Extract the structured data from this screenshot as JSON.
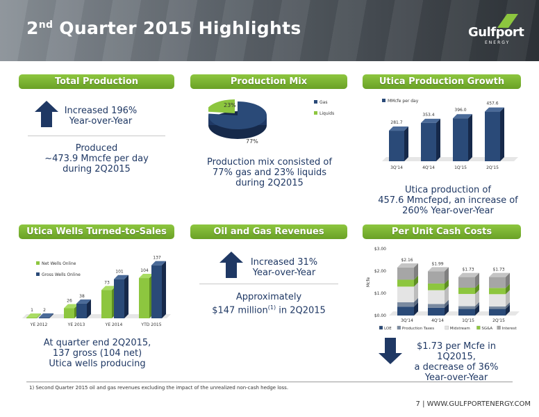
{
  "header": {
    "title_num": "2",
    "title_sup": "nd",
    "title_rest": " Quarter 2015 Highlights",
    "logo_word": "Gulfport",
    "logo_sub": "ENERGY"
  },
  "panels": {
    "total_production": {
      "label": "Total Production",
      "arrow_text_1": "Increased 196%",
      "arrow_text_2": "Year-over-Year",
      "body_1": "Produced",
      "body_2": "~473.9 Mmcfe per day",
      "body_3": "during 2Q2015"
    },
    "production_mix": {
      "label": "Production Mix",
      "body_1": "Production mix consisted of",
      "body_2": "77% gas and 23% liquids",
      "body_3": "during 2Q2015"
    },
    "utica_growth": {
      "label": "Utica Production Growth",
      "body_1": "Utica production of",
      "body_2": "457.6 Mmcfepd, an increase of",
      "body_3": "260% Year-over-Year"
    },
    "wells": {
      "label": "Utica Wells Turned-to-Sales",
      "body_1": "At quarter end 2Q2015,",
      "body_2": "137 gross (104 net)",
      "body_3": "Utica wells producing"
    },
    "revenues": {
      "label": "Oil and Gas Revenues",
      "arrow_text_1": "Increased 31%",
      "arrow_text_2": "Year-over-Year",
      "body_1": "Approximately",
      "body_2a": "$147 million",
      "body_2sup": "(1)",
      "body_2b": " in 2Q2015"
    },
    "unit_costs": {
      "label": "Per Unit Cash Costs",
      "body_1": "$1.73 per Mcfe in 1Q2015,",
      "body_2": "a decrease of 36%",
      "body_3": "Year-over-Year"
    }
  },
  "footnote": "1)    Second Quarter 2015 oil and gas revenues excluding the impact of the unrealized non-cash hedge loss.",
  "page": "7 | WWW.GULFPORTENERGY.COM",
  "colors": {
    "green": "#8dc63f",
    "navy": "#1f3864",
    "bar_blue": "#2a4a78"
  },
  "chart_data": [
    {
      "type": "pie",
      "title": "",
      "slices": [
        {
          "name": "Gas",
          "value": 77,
          "label": "77%"
        },
        {
          "name": "Liquids",
          "value": 23,
          "label": "23%"
        }
      ]
    },
    {
      "type": "bar",
      "title": "",
      "categories": [
        "3Q'14",
        "4Q'14",
        "1Q'15",
        "2Q'15"
      ],
      "series": [
        {
          "name": "MMcfe per day",
          "values": [
            281.7,
            353.4,
            396.0,
            457.6
          ],
          "labels": [
            "281.7",
            "353.4",
            "396.0",
            "457.6"
          ]
        }
      ]
    },
    {
      "type": "bar",
      "title": "",
      "categories": [
        "YE 2012",
        "YE 2013",
        "YE 2014",
        "YTD 2015"
      ],
      "series": [
        {
          "name": "Net Wells Online",
          "values": [
            1,
            26,
            73,
            104
          ]
        },
        {
          "name": "Gross Wells Online",
          "values": [
            2,
            38,
            101,
            137
          ]
        }
      ]
    },
    {
      "type": "bar",
      "title": "",
      "stacked": true,
      "ylabel": "Mcfe",
      "ylim": [
        0,
        3
      ],
      "yticks": [
        "$0.00",
        "$1.00",
        "$2.00",
        "$3.00"
      ],
      "categories": [
        "3Q'14",
        "4Q'14",
        "1Q'15",
        "2Q'15"
      ],
      "totals": [
        "$2.16",
        "$1.99",
        "$1.73",
        "$1.73"
      ],
      "series": [
        {
          "name": "LOE",
          "values": [
            0.4,
            0.35,
            0.3,
            0.3
          ]
        },
        {
          "name": "Production Taxes",
          "values": [
            0.2,
            0.17,
            0.12,
            0.11
          ]
        },
        {
          "name": "Midstream",
          "values": [
            0.7,
            0.62,
            0.55,
            0.55
          ]
        },
        {
          "name": "SG&A",
          "values": [
            0.31,
            0.3,
            0.28,
            0.28
          ]
        },
        {
          "name": "Interest",
          "values": [
            0.55,
            0.55,
            0.48,
            0.49
          ]
        }
      ]
    }
  ]
}
